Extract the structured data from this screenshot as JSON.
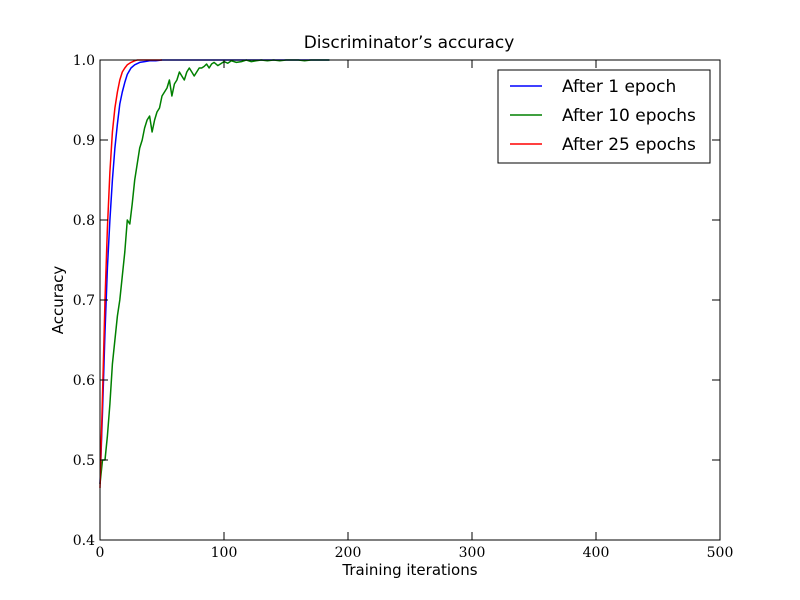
{
  "chart_data": {
    "type": "line",
    "title": "Discriminator’s accuracy",
    "xlabel": "Training iterations",
    "ylabel": "Accuracy",
    "xlim": [
      0,
      500
    ],
    "ylim": [
      0.4,
      1.0
    ],
    "xticks": [
      0,
      100,
      200,
      300,
      400,
      500
    ],
    "yticks": [
      0.4,
      0.5,
      0.6,
      0.7,
      0.8,
      0.9,
      1.0
    ],
    "xtick_labels": [
      "0",
      "100",
      "200",
      "300",
      "400",
      "500"
    ],
    "ytick_labels": [
      "0.4",
      "0.5",
      "0.6",
      "0.7",
      "0.8",
      "0.9",
      "1.0"
    ],
    "grid": false,
    "legend_position": "top-right",
    "series": [
      {
        "name": "After 1 epoch",
        "color": "#0000ff",
        "x": [
          0,
          2,
          4,
          6,
          8,
          10,
          12,
          14,
          16,
          18,
          20,
          22,
          25,
          28,
          32,
          36,
          40,
          45,
          50,
          60,
          70,
          80,
          100,
          120,
          140,
          160,
          180,
          185
        ],
        "y": [
          0.47,
          0.56,
          0.66,
          0.74,
          0.8,
          0.85,
          0.89,
          0.92,
          0.945,
          0.96,
          0.972,
          0.982,
          0.99,
          0.994,
          0.997,
          0.998,
          0.999,
          0.999,
          1.0,
          1.0,
          1.0,
          1.0,
          1.0,
          1.0,
          1.0,
          1.0,
          1.0,
          1.0
        ]
      },
      {
        "name": "After 10 epochs",
        "color": "#008000",
        "x": [
          0,
          2,
          4,
          6,
          8,
          10,
          12,
          14,
          16,
          18,
          20,
          22,
          24,
          26,
          28,
          30,
          32,
          34,
          36,
          38,
          40,
          42,
          44,
          46,
          48,
          50,
          52,
          54,
          56,
          58,
          60,
          62,
          64,
          66,
          68,
          70,
          72,
          74,
          76,
          78,
          80,
          82,
          84,
          86,
          88,
          90,
          92,
          95,
          98,
          100,
          103,
          106,
          110,
          114,
          118,
          122,
          126,
          130,
          135,
          140,
          145,
          150,
          155,
          160,
          165,
          170,
          175,
          180,
          185
        ],
        "y": [
          0.47,
          0.5,
          0.5,
          0.53,
          0.57,
          0.62,
          0.65,
          0.68,
          0.7,
          0.73,
          0.76,
          0.8,
          0.795,
          0.82,
          0.85,
          0.87,
          0.89,
          0.9,
          0.915,
          0.925,
          0.93,
          0.91,
          0.925,
          0.935,
          0.94,
          0.955,
          0.96,
          0.965,
          0.975,
          0.955,
          0.97,
          0.975,
          0.985,
          0.98,
          0.975,
          0.985,
          0.99,
          0.985,
          0.98,
          0.985,
          0.99,
          0.99,
          0.992,
          0.995,
          0.99,
          0.995,
          0.997,
          0.993,
          0.996,
          0.998,
          0.996,
          0.999,
          0.997,
          0.998,
          1.0,
          0.998,
          0.999,
          1.0,
          0.999,
          1.0,
          0.999,
          1.0,
          1.0,
          1.0,
          0.999,
          1.0,
          1.0,
          1.0,
          1.0
        ]
      },
      {
        "name": "After 25 epochs",
        "color": "#ff0000",
        "x": [
          0,
          2,
          4,
          6,
          8,
          10,
          12,
          14,
          16,
          18,
          20,
          22,
          25,
          28,
          30,
          35,
          40,
          45,
          50
        ],
        "y": [
          0.465,
          0.58,
          0.7,
          0.79,
          0.86,
          0.91,
          0.94,
          0.96,
          0.975,
          0.985,
          0.99,
          0.994,
          0.997,
          0.999,
          1.0,
          1.0,
          1.0,
          1.0,
          1.0
        ]
      }
    ]
  }
}
